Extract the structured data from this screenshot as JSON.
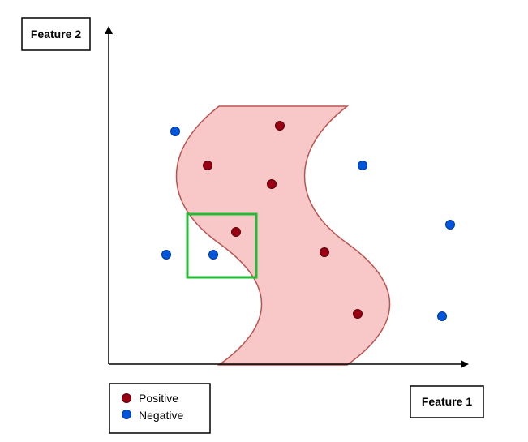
{
  "axes": {
    "x_label": "Feature 1",
    "y_label": "Feature 2"
  },
  "legend": {
    "positive_label": "Positive",
    "negative_label": "Negative"
  },
  "colors": {
    "positive": "#990011",
    "negative": "#0055dd",
    "region_fill": "#f8c8c8",
    "region_stroke": "#b85450",
    "highlight_box": "#22bb33"
  }
}
